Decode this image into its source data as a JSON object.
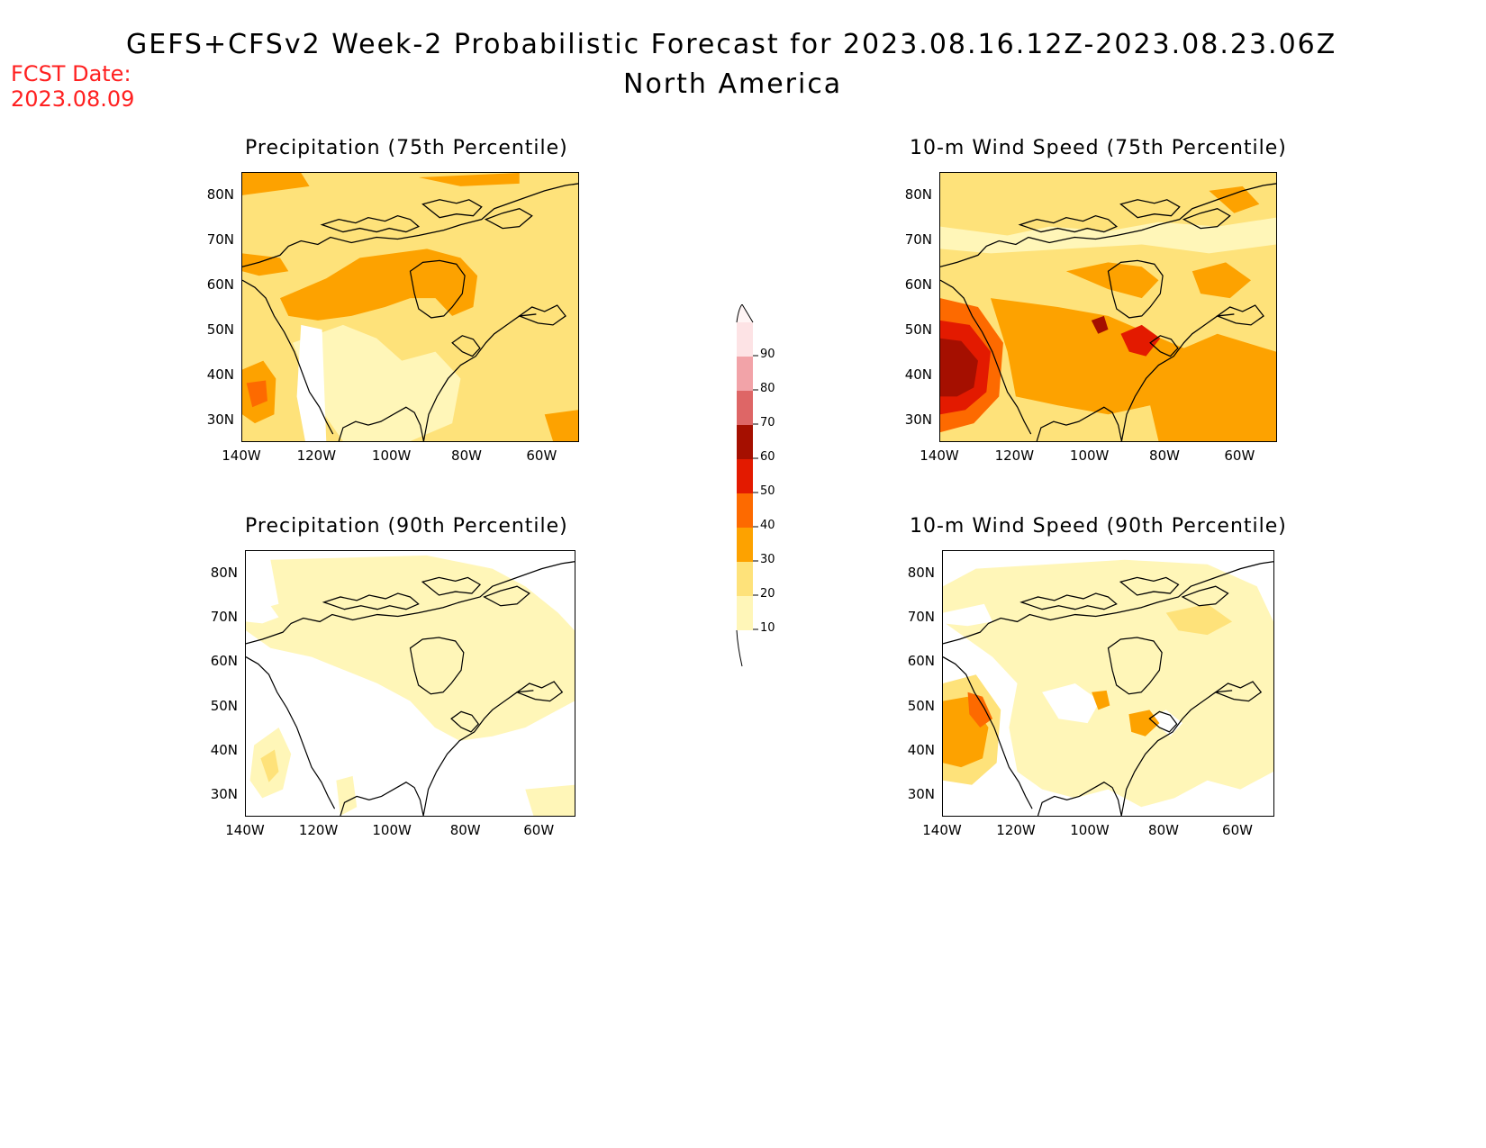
{
  "header": {
    "title": "GEFS+CFSv2 Week-2 Probabilistic Forecast for 2023.08.16.12Z-2023.08.23.06Z",
    "subtitle": "North America",
    "fcst_label": "FCST Date:",
    "fcst_date": "2023.08.09"
  },
  "panels": [
    {
      "title": "Precipitation (75th Percentile)"
    },
    {
      "title": "10-m Wind Speed (75th Percentile)"
    },
    {
      "title": "Precipitation (90th Percentile)"
    },
    {
      "title": "10-m Wind Speed (90th Percentile)"
    }
  ],
  "axes": {
    "y_ticks": [
      "80N",
      "70N",
      "60N",
      "50N",
      "40N",
      "30N"
    ],
    "x_ticks": [
      "140W",
      "120W",
      "100W",
      "80W",
      "60W"
    ]
  },
  "colorbar": {
    "labels": [
      "90",
      "80",
      "70",
      "60",
      "50",
      "40",
      "30",
      "20",
      "10"
    ],
    "colors": [
      "#fde3e5",
      "#f2a3a8",
      "#de6666",
      "#a50f00",
      "#e31a00",
      "#fd6a00",
      "#fda200",
      "#fee27a",
      "#fff6b8"
    ]
  },
  "palette": {
    "c10": "#fff6b8",
    "c20": "#fee27a",
    "c30": "#fda200",
    "c40": "#fd6a00",
    "c50": "#e31a00",
    "c60": "#a50f00",
    "red_text": "#ff2020"
  }
}
